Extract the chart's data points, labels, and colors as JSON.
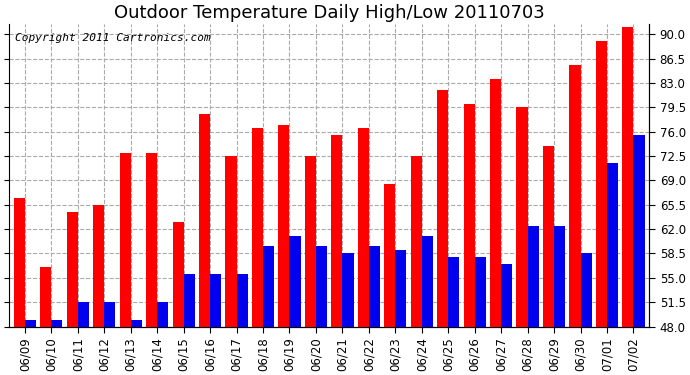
{
  "title": "Outdoor Temperature Daily High/Low 20110703",
  "copyright": "Copyright 2011 Cartronics.com",
  "dates": [
    "06/09",
    "06/10",
    "06/11",
    "06/12",
    "06/13",
    "06/14",
    "06/15",
    "06/16",
    "06/17",
    "06/18",
    "06/19",
    "06/20",
    "06/21",
    "06/22",
    "06/23",
    "06/24",
    "06/25",
    "06/26",
    "06/27",
    "06/28",
    "06/29",
    "06/30",
    "07/01",
    "07/02"
  ],
  "highs": [
    66.5,
    56.5,
    64.5,
    65.5,
    73.0,
    73.0,
    63.0,
    78.5,
    72.5,
    76.5,
    77.0,
    72.5,
    75.5,
    76.5,
    68.5,
    72.5,
    82.0,
    80.0,
    83.5,
    79.5,
    74.0,
    85.5,
    89.0,
    91.0
  ],
  "lows": [
    49.0,
    49.0,
    51.5,
    51.5,
    49.0,
    51.5,
    55.5,
    55.5,
    55.5,
    59.5,
    61.0,
    59.5,
    58.5,
    59.5,
    59.0,
    61.0,
    58.0,
    58.0,
    57.0,
    62.5,
    62.5,
    58.5,
    71.5,
    75.5
  ],
  "high_color": "#ff0000",
  "low_color": "#0000ee",
  "bg_color": "#ffffff",
  "grid_color": "#aaaaaa",
  "ymin": 48.0,
  "ymax": 91.0,
  "yticks": [
    48.0,
    51.5,
    55.0,
    58.5,
    62.0,
    65.5,
    69.0,
    72.5,
    76.0,
    79.5,
    83.0,
    86.5,
    90.0
  ],
  "title_fontsize": 13,
  "copyright_fontsize": 8,
  "tick_fontsize": 8.5,
  "bar_width": 0.42
}
